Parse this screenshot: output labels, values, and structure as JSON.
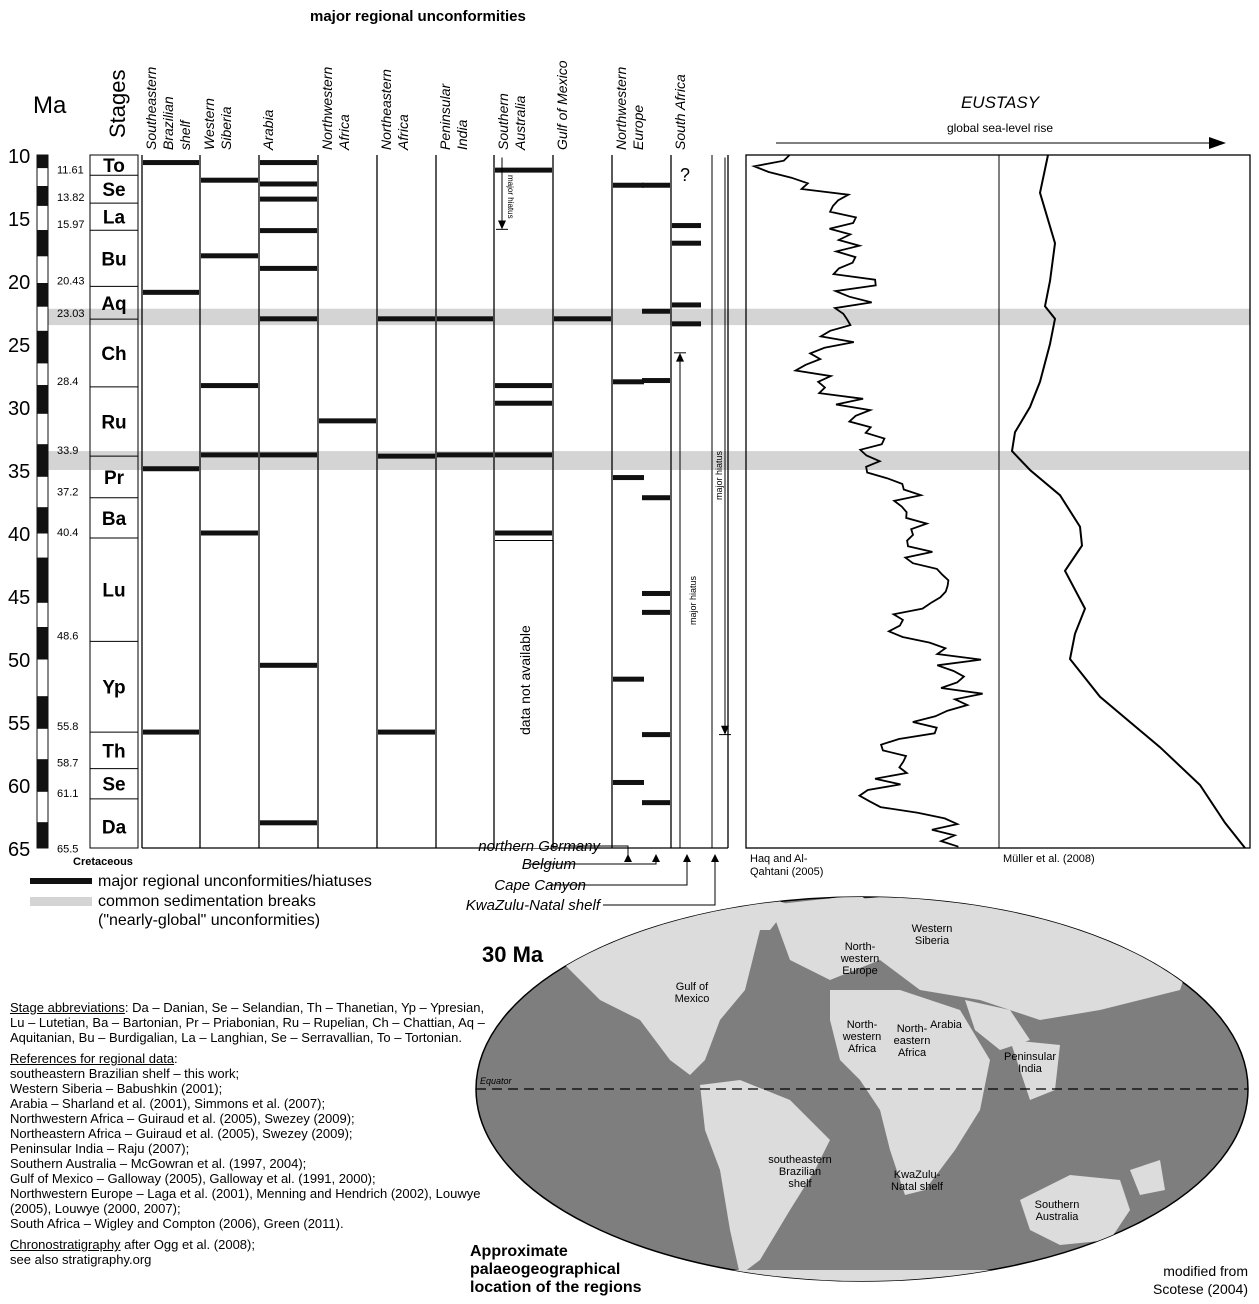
{
  "header": {
    "title": "major regional unconformities"
  },
  "axis": {
    "ma_label": "Ma",
    "stages_label": "Stages",
    "ticks": [
      "10",
      "15",
      "20",
      "25",
      "30",
      "35",
      "40",
      "45",
      "50",
      "55",
      "60",
      "65"
    ],
    "cretaceous": "Cretaceous"
  },
  "stages": [
    {
      "abbr": "To",
      "top": 10.0,
      "bottom": 11.61
    },
    {
      "abbr": "Se",
      "top": 11.61,
      "bottom": 13.82
    },
    {
      "abbr": "La",
      "top": 13.82,
      "bottom": 15.97
    },
    {
      "abbr": "Bu",
      "top": 15.97,
      "bottom": 20.43
    },
    {
      "abbr": "Aq",
      "top": 20.43,
      "bottom": 23.03
    },
    {
      "abbr": "Ch",
      "top": 23.03,
      "bottom": 28.4
    },
    {
      "abbr": "Ru",
      "top": 28.4,
      "bottom": 33.9
    },
    {
      "abbr": "Pr",
      "top": 33.9,
      "bottom": 37.2
    },
    {
      "abbr": "Ba",
      "top": 37.2,
      "bottom": 40.4
    },
    {
      "abbr": "Lu",
      "top": 40.4,
      "bottom": 48.6
    },
    {
      "abbr": "Yp",
      "top": 48.6,
      "bottom": 55.8
    },
    {
      "abbr": "Th",
      "top": 55.8,
      "bottom": 58.7
    },
    {
      "abbr": "Se",
      "top": 58.7,
      "bottom": 61.1
    },
    {
      "abbr": "Da",
      "top": 61.1,
      "bottom": 65.5
    }
  ],
  "boundary_labels": [
    "11.61",
    "13.82",
    "15.97",
    "20.43",
    "23.03",
    "28.4",
    "33.9",
    "37.2",
    "40.4",
    "48.6",
    "55.8",
    "58.7",
    "61.1",
    "65.5"
  ],
  "common_breaks": [
    [
      22.2,
      23.5
    ],
    [
      33.5,
      35.0
    ]
  ],
  "regions": [
    {
      "name": "Southeastern Brazilian shelf",
      "lines": [
        "Southeastern",
        "Brazilian",
        "shelf"
      ],
      "breaks": [
        10.6,
        20.9,
        34.9,
        55.8
      ]
    },
    {
      "name": "Western Siberia",
      "lines": [
        "Western",
        "Siberia"
      ],
      "breaks": [
        12.0,
        18.0,
        28.3,
        33.8,
        40.0
      ]
    },
    {
      "name": "Arabia",
      "lines": [
        "Arabia"
      ],
      "breaks": [
        10.6,
        12.3,
        13.5,
        16.0,
        19.0,
        23.0,
        33.8,
        50.5,
        63.0
      ]
    },
    {
      "name": "Northwestern Africa",
      "lines": [
        "Northwestern",
        "Africa"
      ],
      "breaks": [
        31.1
      ]
    },
    {
      "name": "Northeastern Africa",
      "lines": [
        "Northeastern",
        "Africa"
      ],
      "breaks": [
        23.0,
        33.9,
        55.8
      ]
    },
    {
      "name": "Peninsular India",
      "lines": [
        "Peninsular",
        "India"
      ],
      "breaks": [
        23.0,
        33.8
      ]
    },
    {
      "name": "Southern Australia",
      "lines": [
        "Southern",
        "Australia"
      ],
      "breaks": [
        11.2,
        28.3,
        29.7,
        33.8,
        40.0
      ],
      "hiatus_label": "major hiatus",
      "na_label": "data not available"
    },
    {
      "name": "Gulf of Mexico",
      "lines": [
        "Gulf of Mexico"
      ],
      "breaks": [
        23.0
      ]
    },
    {
      "name": "Northwestern Europe",
      "lines": [
        "Northwestern",
        "Europe"
      ],
      "breaks_left": [
        12.4,
        28.0,
        35.6,
        51.6,
        59.8
      ],
      "breaks_right": [
        12.4,
        22.4,
        27.9,
        37.2,
        44.8,
        46.3,
        56.0,
        61.4
      ]
    },
    {
      "name": "South Africa",
      "lines": [
        "South Africa"
      ],
      "breaks": [
        15.6,
        17.0,
        21.9,
        23.4
      ],
      "question": "?",
      "hiatus_short": "major hiatus",
      "hiatus_long": "major hiatus"
    }
  ],
  "subregions": [
    "northern  Germany",
    "Belgium",
    "Cape Canyon",
    "KwaZulu-Natal shelf"
  ],
  "eustasy": {
    "title": "EUSTASY",
    "arrow_label": "global sea-level rise",
    "source_left": "Haq and Al-Qahtani (2005)",
    "source_right": "Müller et al. (2008)"
  },
  "legend": {
    "unconformities": "major regional unconformities/hiatuses",
    "common_line1": "common sedimentation breaks",
    "common_line2": "(\"nearly-global\" unconformities)"
  },
  "notes": {
    "stage_abbr_heading": "Stage abbreviations",
    "stage_abbr_text": ": Da – Danian, Se – Selandian, Th – Thanetian, Yp – Ypresian, Lu – Lutetian, Ba – Bartonian, Pr – Priabonian, Ru – Rupelian, Ch – Chattian, Aq – Aquitanian, Bu – Burdigalian, La – Langhian, Se – Serravallian, To – Tortonian.",
    "refs_heading": "References for regional data",
    "refs": [
      "southeastern Brazilian shelf – this work;",
      "Western Siberia – Babushkin (2001);",
      "Arabia – Sharland et al. (2001), Simmons et al. (2007);",
      "Northwestern Africa – Guiraud et al. (2005), Swezey (2009);",
      "Northeastern Africa – Guiraud et al. (2005), Swezey (2009);",
      "Peninsular India – Raju (2007);",
      "Southern Australia – McGowran et al. (1997, 2004);",
      "Gulf of Mexico – Galloway (2005), Galloway et al. (1991, 2000);",
      "Northwestern Europe – Laga et al. (2001), Menning and Hendrich (2002), Louwye (2005), Louwye (2000, 2007);",
      "South Africa – Wigley and Compton (2006), Green (2011)."
    ],
    "chrono_heading": "Chronostratigraphy",
    "chrono_text": " after Ogg et al. (2008);",
    "chrono_line2": "see also stratigraphy.org"
  },
  "map": {
    "age": "30 Ma",
    "equator": "Equator",
    "caption": [
      "Approximate",
      "palaeogeographical",
      "location of the regions"
    ],
    "credit": [
      "modified from",
      "Scotese (2004)"
    ],
    "labels": [
      {
        "id": "western-siberia",
        "lines": [
          "Western",
          "Siberia"
        ]
      },
      {
        "id": "nw-europe",
        "lines": [
          "North-",
          "western",
          "Europe"
        ]
      },
      {
        "id": "gulf-mexico",
        "lines": [
          "Gulf of",
          "Mexico"
        ]
      },
      {
        "id": "nw-africa",
        "lines": [
          "North-",
          "western",
          "Africa"
        ]
      },
      {
        "id": "ne-africa",
        "lines": [
          "North-",
          "eastern",
          "Africa"
        ]
      },
      {
        "id": "arabia",
        "lines": [
          "Arabia"
        ]
      },
      {
        "id": "india",
        "lines": [
          "Peninsular",
          "India"
        ]
      },
      {
        "id": "se-brazil",
        "lines": [
          "southeastern",
          "Brazilian",
          "shelf"
        ]
      },
      {
        "id": "kwazulu",
        "lines": [
          "KwaZulu-",
          "Natal shelf"
        ]
      },
      {
        "id": "s-australia",
        "lines": [
          "Southern",
          "Australia"
        ]
      }
    ]
  }
}
